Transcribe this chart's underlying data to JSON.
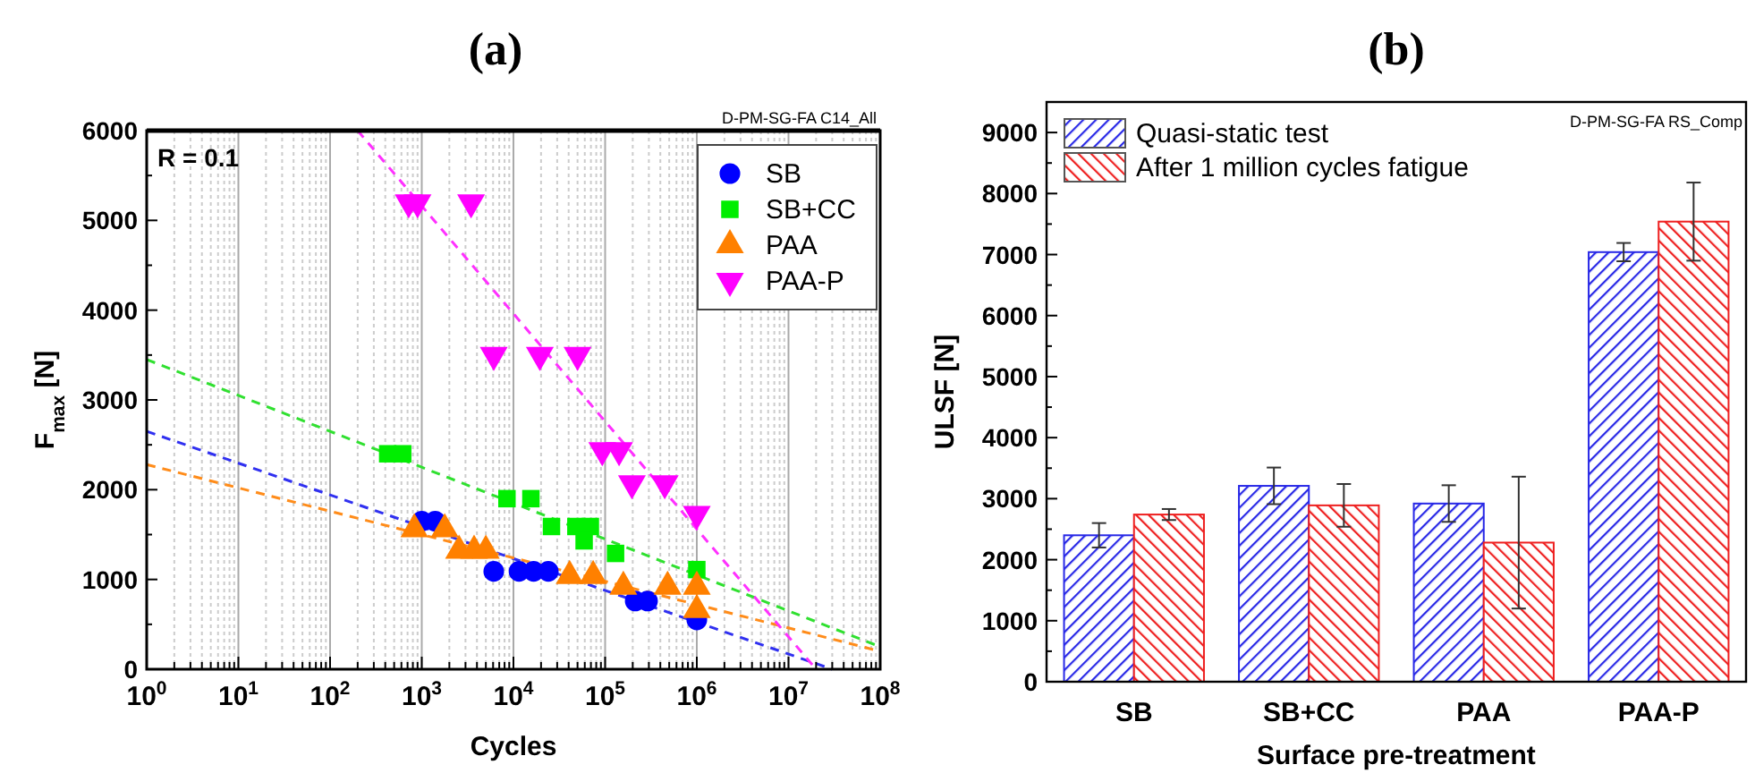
{
  "chart_data": [
    {
      "type": "scatter",
      "title": "(a)",
      "xlabel": "Cycles",
      "ylabel": "F$_{max}$ [N]",
      "log": "x",
      "grid": "x",
      "legend": "top right",
      "xlim": [
        1,
        100000000
      ],
      "ylim": [
        0,
        6000
      ],
      "xticks": [
        {
          "value": 1,
          "label": "10$^{0}$"
        },
        {
          "value": 10,
          "label": "10$^{1}$"
        },
        {
          "value": 100,
          "label": "10$^{2}$"
        },
        {
          "value": 1000,
          "label": "10$^{3}$"
        },
        {
          "value": 10000,
          "label": "10$^{4}$"
        },
        {
          "value": 100000,
          "label": "10$^{5}$"
        },
        {
          "value": 1000000,
          "label": "10$^{6}$"
        },
        {
          "value": 10000000,
          "label": "10$^{7}$"
        },
        {
          "value": 100000000,
          "label": "10$^{8}$"
        }
      ],
      "yticks": [
        0,
        1000,
        2000,
        3000,
        4000,
        5000,
        6000
      ],
      "annotations": [
        "R = 0.1",
        "D-PM-SG-FA C14_All"
      ],
      "series": [
        {
          "type": "line",
          "line_style": "dashed",
          "marker": "none",
          "color": "#3030f0",
          "x": [
            1,
            30000000
          ],
          "values": [
            2650,
            0
          ]
        },
        {
          "type": "line",
          "line_style": "dashed",
          "marker": "none",
          "color": "#30e030",
          "x": [
            1,
            100000000
          ],
          "values": [
            3450,
            250
          ]
        },
        {
          "type": "line",
          "line_style": "dashed",
          "marker": "none",
          "color": "#ff8c1a",
          "x": [
            1,
            100000000
          ],
          "values": [
            2280,
            200
          ]
        },
        {
          "type": "line",
          "line_style": "dashed",
          "marker": "none",
          "color": "#ff30ff",
          "x": [
            200,
            20000000
          ],
          "values": [
            6000,
            0
          ]
        },
        {
          "name": "SB",
          "marker": "circle",
          "color": "#0000ff",
          "x": [
            1000,
            1400,
            6100,
            11500,
            16600,
            24000,
            213000,
            290000,
            1000000
          ],
          "values": [
            1650,
            1650,
            1090,
            1090,
            1090,
            1090,
            760,
            760,
            550
          ]
        },
        {
          "name": "SB+CC",
          "marker": "square",
          "color": "#00ee00",
          "x": [
            425,
            620,
            8500,
            15500,
            26000,
            48000,
            69000,
            59000,
            130000,
            1000000
          ],
          "values": [
            2400,
            2400,
            1900,
            1900,
            1590,
            1590,
            1590,
            1430,
            1290,
            1110
          ]
        },
        {
          "name": "PAA",
          "marker": "triangle",
          "color": "#ff8000",
          "x": [
            830,
            1780,
            2550,
            3720,
            5000,
            41000,
            74000,
            158000,
            480000,
            1000000,
            1000000
          ],
          "values": [
            1560,
            1560,
            1320,
            1320,
            1320,
            1040,
            1040,
            920,
            920,
            920,
            660
          ]
        },
        {
          "name": "PAA-P",
          "marker": "triangle-down",
          "color": "#ff00ff",
          "x": [
            720,
            900,
            3450,
            6100,
            19400,
            50000,
            93000,
            142000,
            196000,
            447000,
            1000000
          ],
          "values": [
            5200,
            5200,
            5200,
            3500,
            3500,
            3500,
            2440,
            2440,
            2070,
            2070,
            1730
          ]
        }
      ]
    },
    {
      "type": "bar",
      "title": "(b)",
      "xlabel": "Surface pre-treatment",
      "ylabel": "ULSF [N]",
      "legend": "top left",
      "categories": [
        "SB",
        "SB+CC",
        "PAA",
        "PAA-P"
      ],
      "ylim": [
        0,
        9500
      ],
      "yticks": [
        0,
        1000,
        2000,
        3000,
        4000,
        5000,
        6000,
        7000,
        8000,
        9000
      ],
      "annotations": [
        "D-PM-SG-FA RS_Comp"
      ],
      "series": [
        {
          "name": "Quasi-static test",
          "color": "#2828e6",
          "values": [
            2400,
            3210,
            2920,
            7040
          ],
          "errors": [
            200,
            300,
            300,
            150
          ]
        },
        {
          "name": "After 1 million cycles fatigue",
          "color": "#ee2020",
          "values": [
            2740,
            2890,
            2280,
            7540
          ],
          "errors": [
            90,
            350,
            1080,
            640
          ]
        }
      ]
    }
  ]
}
